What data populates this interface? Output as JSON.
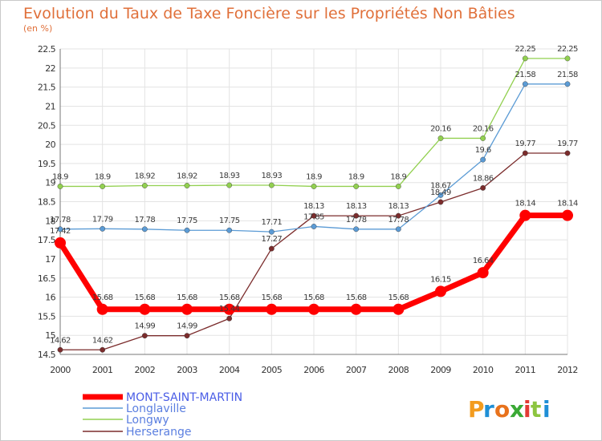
{
  "chart_data": {
    "type": "line",
    "title": "Evolution du Taux de Taxe Foncière sur les Propriétés Non Bâties",
    "subtitle": "(en %)",
    "xlabel": "",
    "ylabel": "",
    "ylim": [
      14.5,
      22.5
    ],
    "ytick_step": 0.5,
    "grid": true,
    "legend_position": "bottom-left",
    "categories": [
      "2000",
      "2001",
      "2002",
      "2003",
      "2004",
      "2005",
      "2006",
      "2007",
      "2008",
      "2009",
      "2010",
      "2011",
      "2012"
    ],
    "series": [
      {
        "name": "MONT-SAINT-MARTIN",
        "color": "#ff0000",
        "values": [
          17.42,
          15.68,
          15.68,
          15.68,
          15.68,
          15.68,
          15.68,
          15.68,
          15.68,
          16.15,
          16.64,
          18.14,
          18.14
        ],
        "labels": [
          "17.42",
          "15.68",
          "15.68",
          "15.68",
          "15.68",
          "15.68",
          "15.68",
          "15.68",
          "15.68",
          "16.15",
          "16.64",
          "18.14",
          "18.14"
        ]
      },
      {
        "name": "Longlaville",
        "color": "#5b9bd5",
        "values": [
          17.78,
          17.79,
          17.78,
          17.75,
          17.75,
          17.71,
          17.85,
          17.78,
          17.78,
          18.67,
          19.6,
          21.58,
          21.58
        ],
        "labels": [
          "17.78",
          "17.79",
          "17.78",
          "17.75",
          "17.75",
          "17.71",
          "17.85",
          "17.78",
          "17.78",
          "18.67",
          "19.6",
          "21.58",
          "21.58"
        ]
      },
      {
        "name": "Longwy",
        "color": "#92d050",
        "values": [
          18.9,
          18.9,
          18.92,
          18.92,
          18.93,
          18.93,
          18.9,
          18.9,
          18.9,
          20.16,
          20.16,
          22.25,
          22.25
        ],
        "labels": [
          "18.9",
          "18.9",
          "18.92",
          "18.92",
          "18.93",
          "18.93",
          "18.9",
          "18.9",
          "18.9",
          "20.16",
          "20.16",
          "22.25",
          "22.25"
        ]
      },
      {
        "name": "Herserange",
        "color": "#7b2c2c",
        "values": [
          14.62,
          14.62,
          14.99,
          14.99,
          15.44,
          17.27,
          18.13,
          18.13,
          18.13,
          18.49,
          18.86,
          19.77,
          19.77
        ],
        "labels": [
          "14.62",
          "14.62",
          "14.99",
          "14.99",
          "15.44",
          "17.27",
          "18.13",
          "18.13",
          "18.13",
          "18.49",
          "18.86",
          "19.77",
          "19.77"
        ]
      }
    ]
  },
  "logo": {
    "letters": [
      "P",
      "r",
      "o",
      "x",
      "i",
      "t",
      "i"
    ],
    "colors": [
      "#f39c1f",
      "#1f8fd6",
      "#e8721c",
      "#3aa935",
      "#e23a34",
      "#8cc540",
      "#1f8fd6"
    ]
  }
}
